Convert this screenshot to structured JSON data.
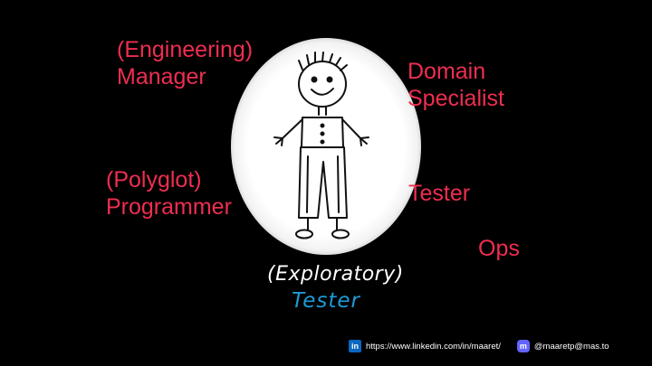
{
  "slide": {
    "roles": {
      "engineering_manager": [
        "(Engineering)",
        "Manager"
      ],
      "domain_specialist": [
        "Domain",
        "Specialist"
      ],
      "polyglot_programmer": [
        "(Polyglot)",
        "Programmer"
      ],
      "tester": "Tester",
      "ops": "Ops"
    },
    "center_label": {
      "line1": "(Exploratory)",
      "line2": "Tester"
    },
    "footer": {
      "linkedin_icon": "linkedin-icon",
      "linkedin_url": "https://www.linkedin.com/in/maaret/",
      "mastodon_icon": "mastodon-icon",
      "mastodon_handle": "@maaretp@mas.to"
    },
    "colors": {
      "background": "#000000",
      "role_text": "#ee2e50",
      "exploratory_text": "#ffffff",
      "tester_text": "#1e9ad6",
      "linkedin": "#0a66c2",
      "mastodon": "#6364ff"
    }
  }
}
